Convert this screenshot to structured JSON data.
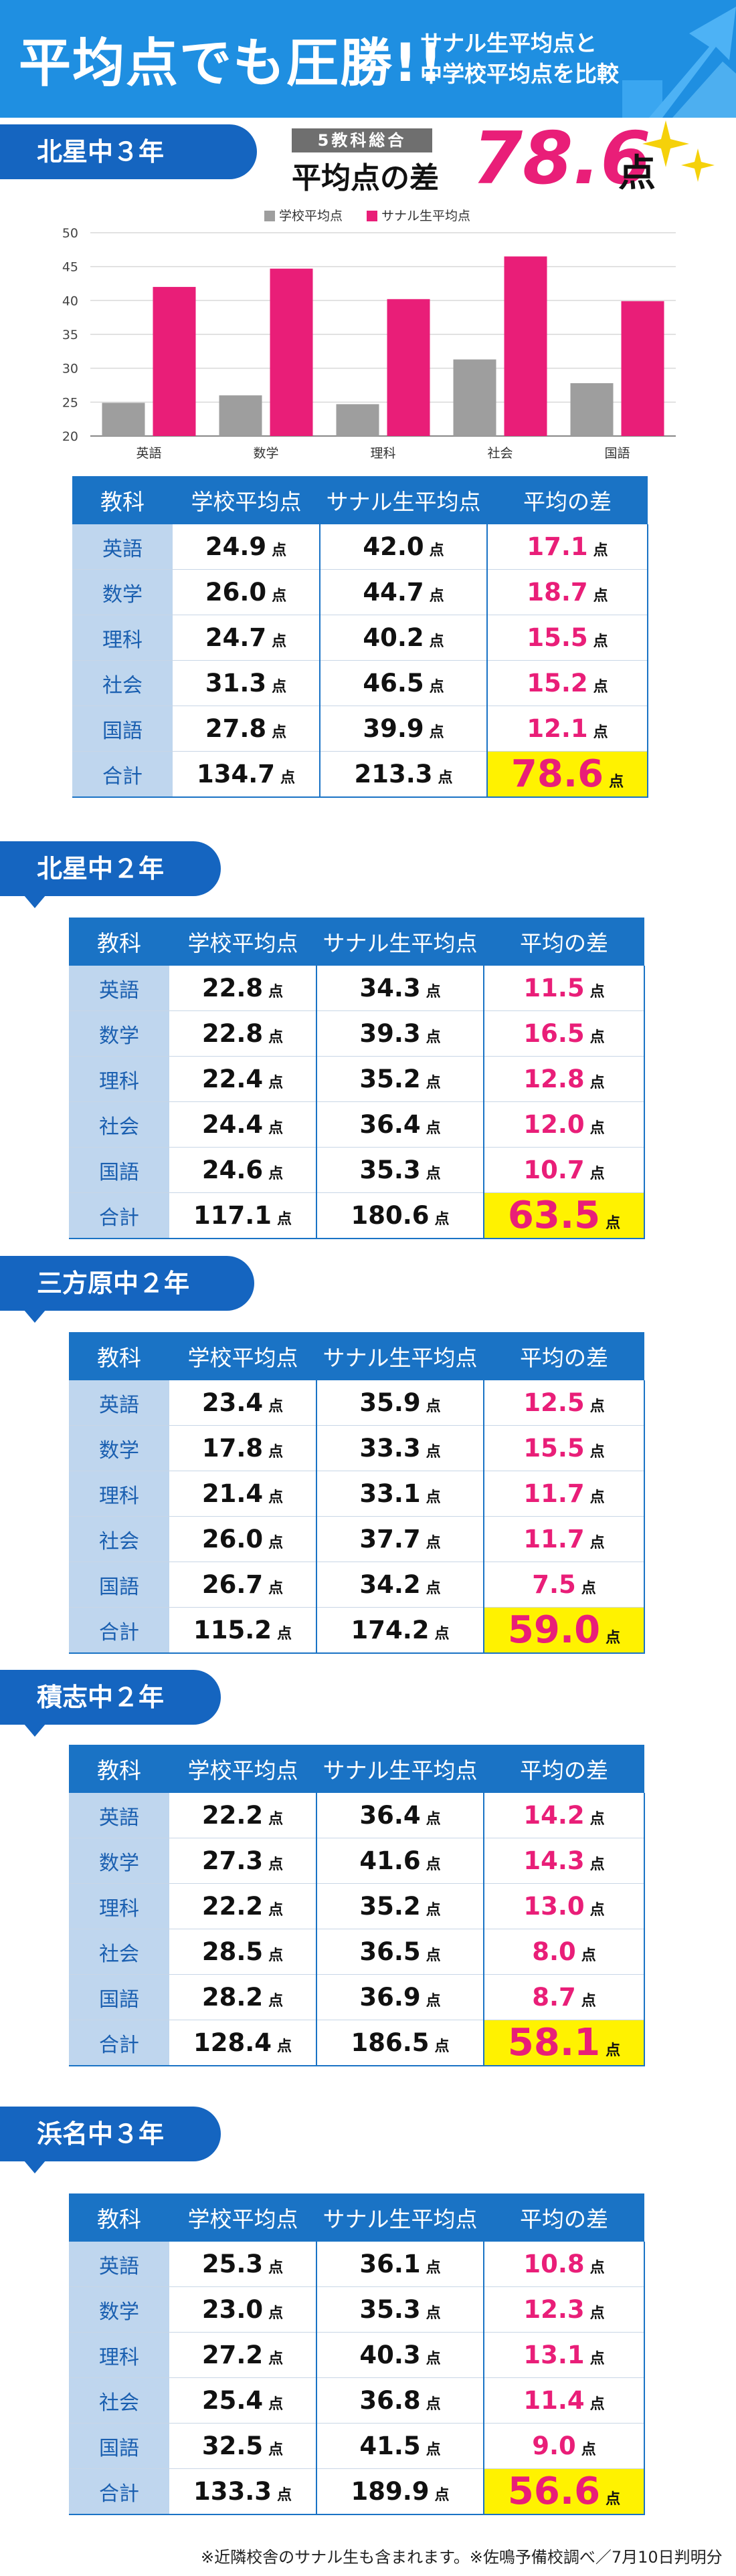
{
  "header": {
    "title": "平均点でも圧勝!!",
    "subtitle_line1": "サナル生平均点と",
    "subtitle_line2": "中学校平均点を比較"
  },
  "summary": {
    "badge": "5教科総合",
    "label": "平均点の差",
    "value": "78.6",
    "unit": "点"
  },
  "colors": {
    "accent_pink": "#e91e78",
    "brand_blue": "#1a73c5",
    "school_bar": "#9e9e9e",
    "highlight_yellow": "#fff200"
  },
  "chart_data": {
    "type": "bar",
    "categories": [
      "英語",
      "数学",
      "理科",
      "社会",
      "国語"
    ],
    "series": [
      {
        "name": "学校平均点",
        "values": [
          24.9,
          26.0,
          24.7,
          31.3,
          27.8
        ],
        "color": "#9e9e9e"
      },
      {
        "name": "サナル生平均点",
        "values": [
          42.0,
          44.7,
          40.2,
          46.5,
          39.9
        ],
        "color": "#e91e78"
      }
    ],
    "ylim": [
      20,
      50
    ],
    "yticks": [
      20,
      25,
      30,
      35,
      40,
      45,
      50
    ],
    "grid": true,
    "legend_position": "top-center"
  },
  "columns": [
    "教科",
    "学校平均点",
    "サナル生平均点",
    "平均の差"
  ],
  "unit": "点",
  "sections": [
    {
      "title": "北星中３年",
      "rows": [
        {
          "subject": "英語",
          "school": "24.9",
          "sanaru": "42.0",
          "diff": "17.1"
        },
        {
          "subject": "数学",
          "school": "26.0",
          "sanaru": "44.7",
          "diff": "18.7"
        },
        {
          "subject": "理科",
          "school": "24.7",
          "sanaru": "40.2",
          "diff": "15.5"
        },
        {
          "subject": "社会",
          "school": "31.3",
          "sanaru": "46.5",
          "diff": "15.2"
        },
        {
          "subject": "国語",
          "school": "27.8",
          "sanaru": "39.9",
          "diff": "12.1"
        },
        {
          "subject": "合計",
          "school": "134.7",
          "sanaru": "213.3",
          "diff": "78.6"
        }
      ]
    },
    {
      "title": "北星中２年",
      "rows": [
        {
          "subject": "英語",
          "school": "22.8",
          "sanaru": "34.3",
          "diff": "11.5"
        },
        {
          "subject": "数学",
          "school": "22.8",
          "sanaru": "39.3",
          "diff": "16.5"
        },
        {
          "subject": "理科",
          "school": "22.4",
          "sanaru": "35.2",
          "diff": "12.8"
        },
        {
          "subject": "社会",
          "school": "24.4",
          "sanaru": "36.4",
          "diff": "12.0"
        },
        {
          "subject": "国語",
          "school": "24.6",
          "sanaru": "35.3",
          "diff": "10.7"
        },
        {
          "subject": "合計",
          "school": "117.1",
          "sanaru": "180.6",
          "diff": "63.5"
        }
      ]
    },
    {
      "title": "三方原中２年",
      "rows": [
        {
          "subject": "英語",
          "school": "23.4",
          "sanaru": "35.9",
          "diff": "12.5"
        },
        {
          "subject": "数学",
          "school": "17.8",
          "sanaru": "33.3",
          "diff": "15.5"
        },
        {
          "subject": "理科",
          "school": "21.4",
          "sanaru": "33.1",
          "diff": "11.7"
        },
        {
          "subject": "社会",
          "school": "26.0",
          "sanaru": "37.7",
          "diff": "11.7"
        },
        {
          "subject": "国語",
          "school": "26.7",
          "sanaru": "34.2",
          "diff": "7.5"
        },
        {
          "subject": "合計",
          "school": "115.2",
          "sanaru": "174.2",
          "diff": "59.0"
        }
      ]
    },
    {
      "title": "積志中２年",
      "rows": [
        {
          "subject": "英語",
          "school": "22.2",
          "sanaru": "36.4",
          "diff": "14.2"
        },
        {
          "subject": "数学",
          "school": "27.3",
          "sanaru": "41.6",
          "diff": "14.3"
        },
        {
          "subject": "理科",
          "school": "22.2",
          "sanaru": "35.2",
          "diff": "13.0"
        },
        {
          "subject": "社会",
          "school": "28.5",
          "sanaru": "36.5",
          "diff": "8.0"
        },
        {
          "subject": "国語",
          "school": "28.2",
          "sanaru": "36.9",
          "diff": "8.7"
        },
        {
          "subject": "合計",
          "school": "128.4",
          "sanaru": "186.5",
          "diff": "58.1"
        }
      ]
    },
    {
      "title": "浜名中３年",
      "rows": [
        {
          "subject": "英語",
          "school": "25.3",
          "sanaru": "36.1",
          "diff": "10.8"
        },
        {
          "subject": "数学",
          "school": "23.0",
          "sanaru": "35.3",
          "diff": "12.3"
        },
        {
          "subject": "理科",
          "school": "27.2",
          "sanaru": "40.3",
          "diff": "13.1"
        },
        {
          "subject": "社会",
          "school": "25.4",
          "sanaru": "36.8",
          "diff": "11.4"
        },
        {
          "subject": "国語",
          "school": "32.5",
          "sanaru": "41.5",
          "diff": "9.0"
        },
        {
          "subject": "合計",
          "school": "133.3",
          "sanaru": "189.9",
          "diff": "56.6"
        }
      ]
    }
  ],
  "footnote": "※近隣校舎のサナル生も含まれます。※佐鳴予備校調べ／7月10日判明分"
}
